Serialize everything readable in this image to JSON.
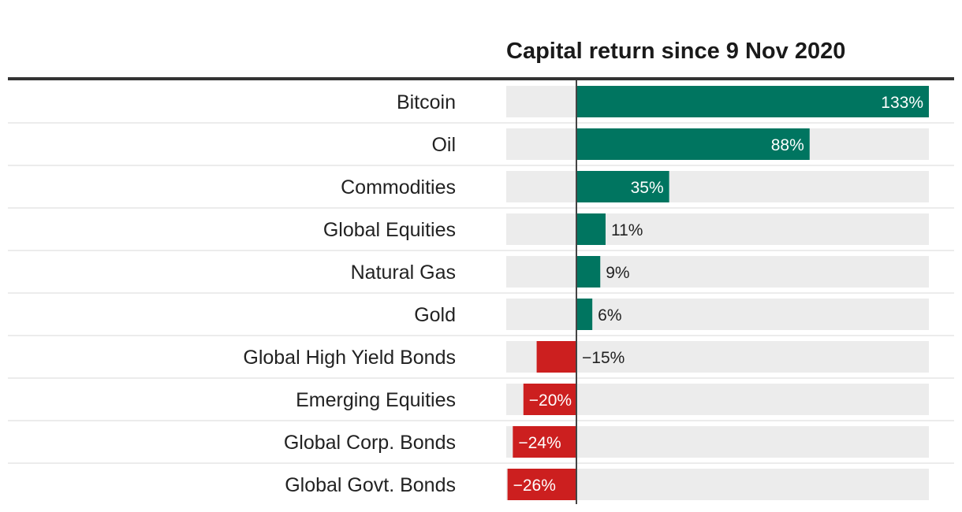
{
  "chart_data": {
    "type": "bar",
    "orientation": "horizontal",
    "title": "Capital return since 9 Nov 2020",
    "xlabel": "",
    "ylabel": "",
    "unit": "%",
    "xlim": [
      -26,
      133
    ],
    "grid": false,
    "legend": "none",
    "categories": [
      "Bitcoin",
      "Oil",
      "Commodities",
      "Global Equities",
      "Natural Gas",
      "Gold",
      "Global High Yield Bonds",
      "Emerging Equities",
      "Global Corp. Bonds",
      "Global Govt. Bonds"
    ],
    "values": [
      133,
      88,
      35,
      11,
      9,
      6,
      -15,
      -20,
      -24,
      -26
    ],
    "value_labels": [
      "133%",
      "88%",
      "35%",
      "11%",
      "9%",
      "6%",
      "−15%",
      "−20%",
      "−24%",
      "−26%"
    ],
    "colors": {
      "positive": "#007560",
      "negative": "#cc1f1f",
      "track": "#ececec",
      "zero_line": "#444444",
      "header_rule": "#333333",
      "row_divider": "#e6e6e6"
    }
  }
}
